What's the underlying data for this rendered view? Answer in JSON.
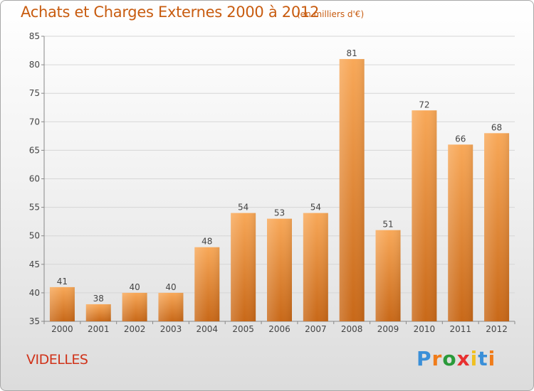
{
  "header": {
    "title": "Achats et Charges Externes 2000 à 2012",
    "subtitle": "(en milliers d'€)"
  },
  "commune": "VIDELLES",
  "logo": {
    "letters": [
      "P",
      "r",
      "o",
      "x",
      "i",
      "t",
      "i"
    ],
    "colors": [
      "#3a8fd8",
      "#f07c1a",
      "#2a9a3a",
      "#e83030",
      "#f0c020",
      "#3a8fd8",
      "#f07c1a"
    ]
  },
  "chart_data": {
    "type": "bar",
    "categories": [
      "2000",
      "2001",
      "2002",
      "2003",
      "2004",
      "2005",
      "2006",
      "2007",
      "2008",
      "2009",
      "2010",
      "2011",
      "2012"
    ],
    "values": [
      41,
      38,
      40,
      40,
      48,
      54,
      53,
      54,
      81,
      51,
      72,
      66,
      68
    ],
    "ylim": [
      35,
      85
    ],
    "yticks": [
      35,
      40,
      45,
      50,
      55,
      60,
      65,
      70,
      75,
      80,
      85
    ],
    "grid": true,
    "bar_color_top": "#f8a858",
    "bar_color_bottom": "#c86818"
  }
}
